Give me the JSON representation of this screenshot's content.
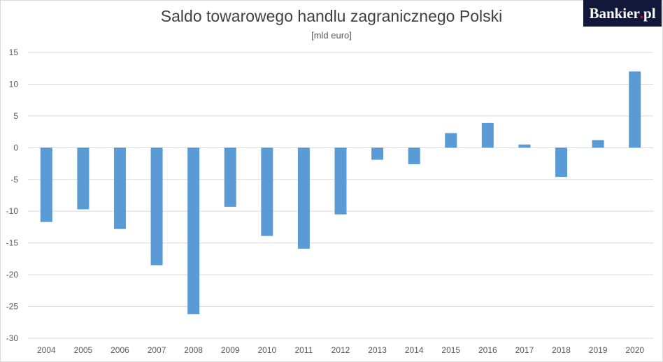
{
  "chart_data": {
    "type": "bar",
    "title": "Saldo towarowego handlu zagranicznego Polski",
    "subtitle": "[mld euro]",
    "xlabel": "",
    "ylabel": "",
    "categories": [
      "2004",
      "2005",
      "2006",
      "2007",
      "2008",
      "2009",
      "2010",
      "2011",
      "2012",
      "2013",
      "2014",
      "2015",
      "2016",
      "2017",
      "2018",
      "2019",
      "2020"
    ],
    "values": [
      -11.7,
      -9.7,
      -12.8,
      -18.5,
      -26.2,
      -9.3,
      -13.9,
      -15.9,
      -10.5,
      -1.9,
      -2.6,
      2.3,
      3.9,
      0.5,
      -4.6,
      1.2,
      12.0
    ],
    "ylim": [
      -30,
      15
    ],
    "yticks": [
      "15",
      "10",
      "5",
      "0",
      "-5",
      "-10",
      "-15",
      "-20",
      "-25",
      "-30"
    ],
    "grid": true,
    "bar_color": "#5b9bd5"
  },
  "branding": {
    "logo_word": "Bankier",
    "logo_dot": ".",
    "logo_suffix": "pl",
    "logo_bg": "#12183a",
    "logo_dot_color": "#e30613"
  }
}
